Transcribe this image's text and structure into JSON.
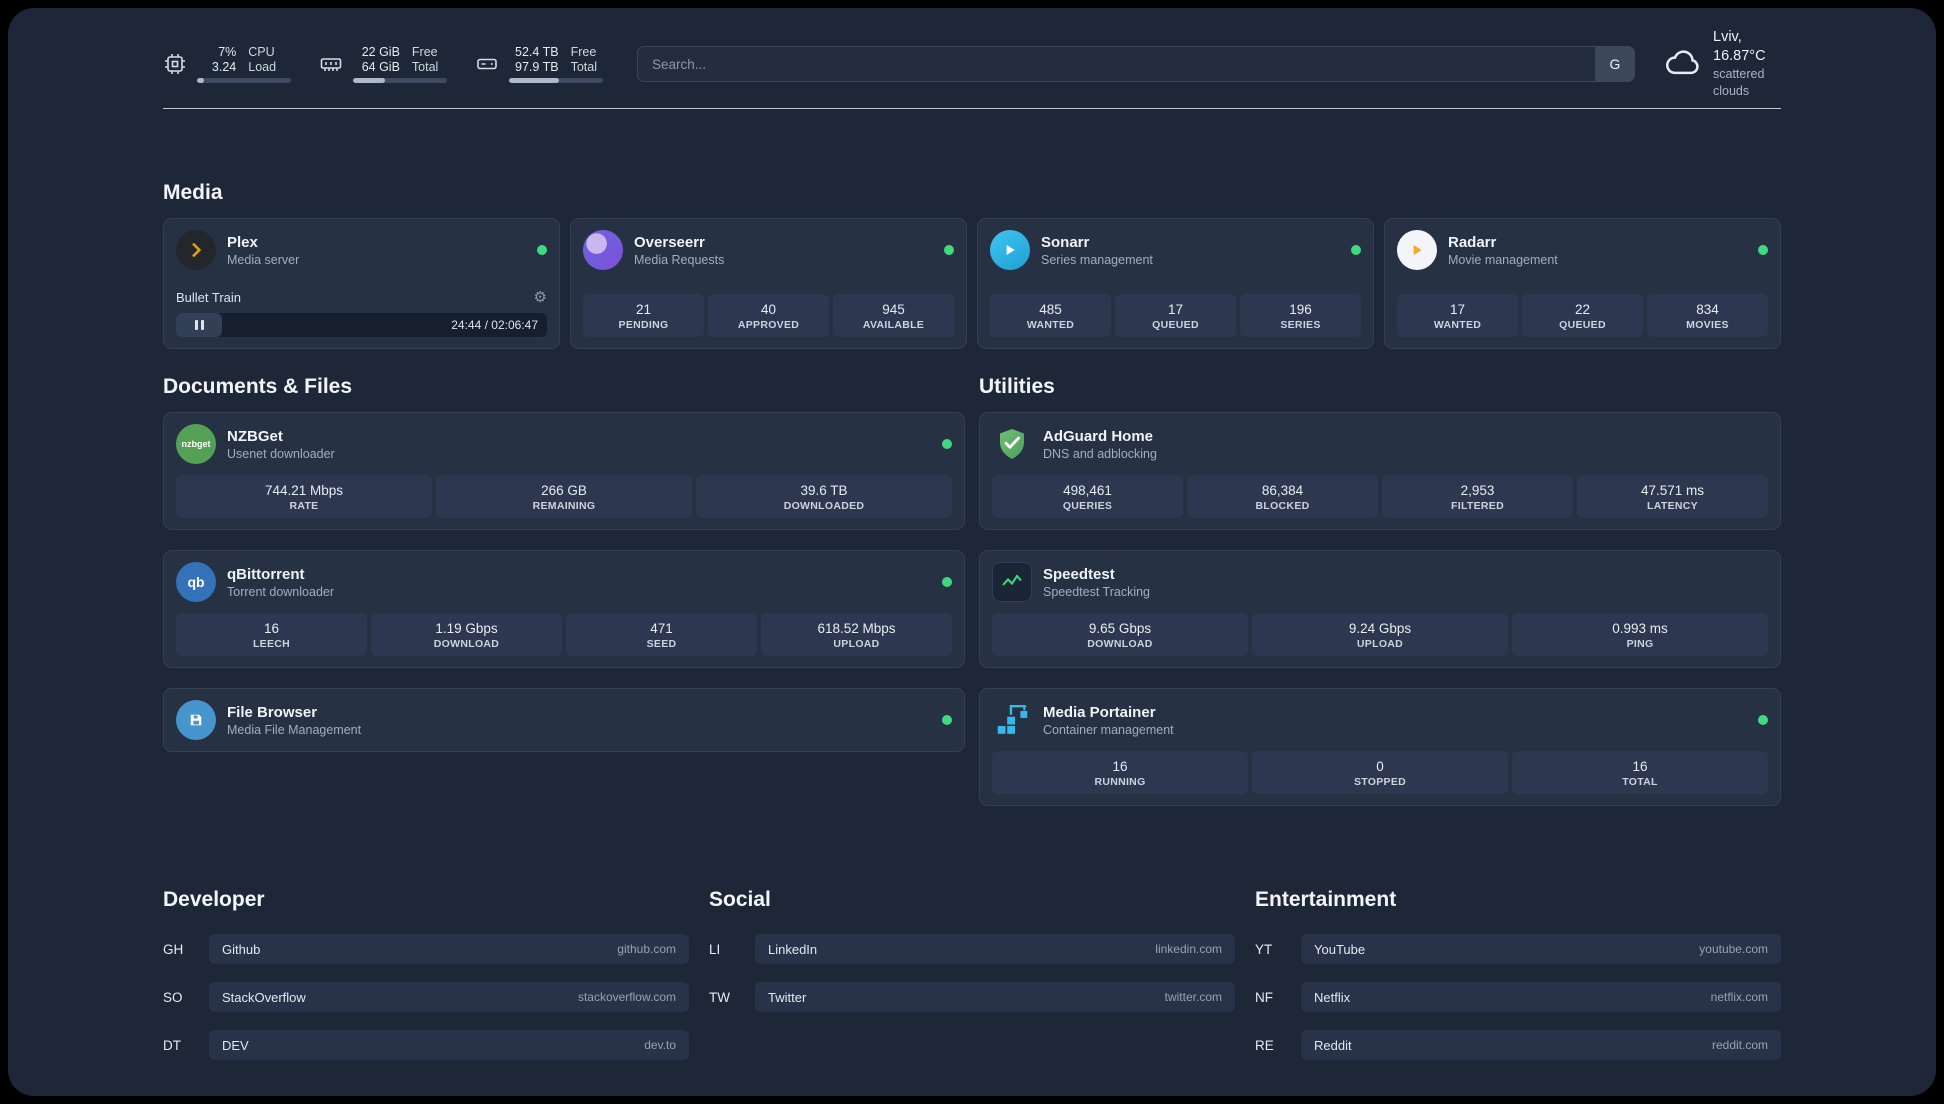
{
  "topbar": {
    "cpu": {
      "value1": "7%",
      "label1": "CPU",
      "value2": "3.24",
      "label2": "Load",
      "percent": 7
    },
    "memory": {
      "value1": "22 GiB",
      "label1": "Free",
      "value2": "64 GiB",
      "label2": "Total",
      "percent": 34
    },
    "disk": {
      "value1": "52.4 TB",
      "label1": "Free",
      "value2": "97.9 TB",
      "label2": "Total",
      "percent": 53
    },
    "search": {
      "placeholder": "Search...",
      "engine": "G"
    },
    "weather": {
      "location": "Lviv, 16.87°C",
      "condition": "scattered clouds"
    }
  },
  "media": {
    "title": "Media",
    "plex": {
      "name": "Plex",
      "desc": "Media server",
      "track": "Bullet Train",
      "time": "24:44 / 02:06:47"
    },
    "overseerr": {
      "name": "Overseerr",
      "desc": "Media Requests",
      "stats": [
        {
          "value": "21",
          "label": "PENDING"
        },
        {
          "value": "40",
          "label": "APPROVED"
        },
        {
          "value": "945",
          "label": "AVAILABLE"
        }
      ]
    },
    "sonarr": {
      "name": "Sonarr",
      "desc": "Series management",
      "stats": [
        {
          "value": "485",
          "label": "WANTED"
        },
        {
          "value": "17",
          "label": "QUEUED"
        },
        {
          "value": "196",
          "label": "SERIES"
        }
      ]
    },
    "radarr": {
      "name": "Radarr",
      "desc": "Movie management",
      "stats": [
        {
          "value": "17",
          "label": "WANTED"
        },
        {
          "value": "22",
          "label": "QUEUED"
        },
        {
          "value": "834",
          "label": "MOVIES"
        }
      ]
    }
  },
  "documents": {
    "title": "Documents & Files",
    "nzbget": {
      "name": "NZBGet",
      "desc": "Usenet downloader",
      "icon_text": "nzbget",
      "stats": [
        {
          "value": "744.21 Mbps",
          "label": "RATE"
        },
        {
          "value": "266 GB",
          "label": "REMAINING"
        },
        {
          "value": "39.6 TB",
          "label": "DOWNLOADED"
        }
      ]
    },
    "qbittorrent": {
      "name": "qBittorrent",
      "desc": "Torrent downloader",
      "icon_text": "qb",
      "stats": [
        {
          "value": "16",
          "label": "LEECH"
        },
        {
          "value": "1.19 Gbps",
          "label": "DOWNLOAD"
        },
        {
          "value": "471",
          "label": "SEED"
        },
        {
          "value": "618.52 Mbps",
          "label": "UPLOAD"
        }
      ]
    },
    "filebrowser": {
      "name": "File Browser",
      "desc": "Media File Management"
    }
  },
  "utilities": {
    "title": "Utilities",
    "adguard": {
      "name": "AdGuard Home",
      "desc": "DNS and adblocking",
      "stats": [
        {
          "value": "498,461",
          "label": "QUERIES"
        },
        {
          "value": "86,384",
          "label": "BLOCKED"
        },
        {
          "value": "2,953",
          "label": "FILTERED"
        },
        {
          "value": "47.571 ms",
          "label": "LATENCY"
        }
      ]
    },
    "speedtest": {
      "name": "Speedtest",
      "desc": "Speedtest Tracking",
      "stats": [
        {
          "value": "9.65 Gbps",
          "label": "DOWNLOAD"
        },
        {
          "value": "9.24 Gbps",
          "label": "UPLOAD"
        },
        {
          "value": "0.993 ms",
          "label": "PING"
        }
      ]
    },
    "portainer": {
      "name": "Media Portainer",
      "desc": "Container management",
      "stats": [
        {
          "value": "16",
          "label": "RUNNING"
        },
        {
          "value": "0",
          "label": "STOPPED"
        },
        {
          "value": "16",
          "label": "TOTAL"
        }
      ]
    }
  },
  "bookmarks": {
    "developer": {
      "title": "Developer",
      "items": [
        {
          "abbr": "GH",
          "name": "Github",
          "url": "github.com"
        },
        {
          "abbr": "SO",
          "name": "StackOverflow",
          "url": "stackoverflow.com"
        },
        {
          "abbr": "DT",
          "name": "DEV",
          "url": "dev.to"
        }
      ]
    },
    "social": {
      "title": "Social",
      "items": [
        {
          "abbr": "LI",
          "name": "LinkedIn",
          "url": "linkedin.com"
        },
        {
          "abbr": "TW",
          "name": "Twitter",
          "url": "twitter.com"
        }
      ]
    },
    "entertainment": {
      "title": "Entertainment",
      "items": [
        {
          "abbr": "YT",
          "name": "YouTube",
          "url": "youtube.com"
        },
        {
          "abbr": "NF",
          "name": "Netflix",
          "url": "netflix.com"
        },
        {
          "abbr": "RE",
          "name": "Reddit",
          "url": "reddit.com"
        }
      ]
    }
  }
}
